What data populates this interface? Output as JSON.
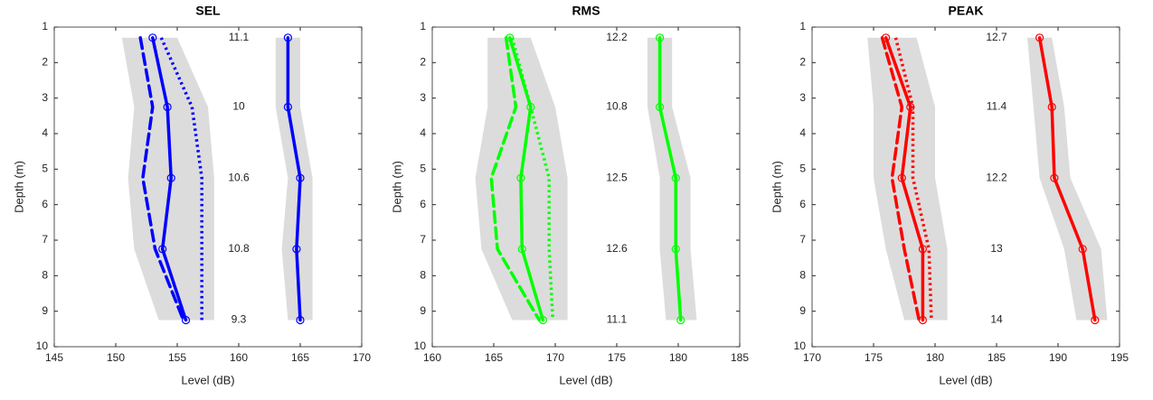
{
  "chart_data": [
    {
      "type": "line",
      "title": "SEL",
      "x_label": "Level (dB)",
      "y_label": "Depth (m)",
      "xlim": [
        145,
        170
      ],
      "xticks": [
        145,
        150,
        155,
        160,
        165,
        170
      ],
      "ylim": [
        1,
        10
      ],
      "yticks": [
        1,
        2,
        3,
        4,
        5,
        6,
        7,
        8,
        9,
        10
      ],
      "y_reversed": true,
      "y": [
        1.3,
        3.25,
        5.25,
        7.25,
        9.25
      ],
      "bands": [
        {
          "color": "#dcdcdc",
          "lower": [
            150.5,
            151.5,
            151,
            151.5,
            153.5
          ],
          "upper": [
            155,
            157.5,
            158,
            158,
            158
          ]
        },
        {
          "color": "#dcdcdc",
          "lower": [
            163,
            163,
            164,
            163.5,
            164
          ],
          "upper": [
            165,
            165,
            166,
            166,
            166
          ]
        }
      ],
      "series": [
        {
          "color": "#0000ff",
          "dash": "solid",
          "markers": true,
          "values": [
            153,
            154.2,
            154.5,
            153.8,
            155.7
          ]
        },
        {
          "color": "#0000ff",
          "dash": "dashed",
          "markers": false,
          "values": [
            152,
            153,
            152.2,
            153.2,
            155.5
          ]
        },
        {
          "color": "#0000ff",
          "dash": "dotted",
          "markers": false,
          "values": [
            153.7,
            156.2,
            157,
            157,
            157
          ]
        },
        {
          "color": "#0000ff",
          "dash": "solid",
          "markers": true,
          "values": [
            164,
            164,
            165,
            164.7,
            165
          ]
        }
      ],
      "annotations": [
        11.1,
        10,
        10.6,
        10.8,
        9.3
      ]
    },
    {
      "type": "line",
      "title": "RMS",
      "x_label": "Level (dB)",
      "y_label": "Depth (m)",
      "xlim": [
        160,
        185
      ],
      "xticks": [
        160,
        165,
        170,
        175,
        180,
        185
      ],
      "ylim": [
        1,
        10
      ],
      "yticks": [
        1,
        2,
        3,
        4,
        5,
        6,
        7,
        8,
        9,
        10
      ],
      "y_reversed": true,
      "y": [
        1.3,
        3.25,
        5.25,
        7.25,
        9.25
      ],
      "bands": [
        {
          "color": "#dcdcdc",
          "lower": [
            164.5,
            164.5,
            163.5,
            164,
            166.5
          ],
          "upper": [
            168,
            170,
            171,
            171,
            171
          ]
        },
        {
          "color": "#dcdcdc",
          "lower": [
            177.5,
            177.5,
            178.5,
            178.5,
            179
          ],
          "upper": [
            179.5,
            179.5,
            181,
            181,
            181.5
          ]
        }
      ],
      "series": [
        {
          "color": "#00ff00",
          "dash": "solid",
          "markers": true,
          "values": [
            166.3,
            168,
            167.2,
            167.3,
            169
          ]
        },
        {
          "color": "#00ff00",
          "dash": "dashed",
          "markers": false,
          "values": [
            166,
            166.8,
            164.8,
            165.3,
            168.7
          ]
        },
        {
          "color": "#00ff00",
          "dash": "dotted",
          "markers": false,
          "values": [
            166.5,
            168,
            169.5,
            169.5,
            169.8
          ]
        },
        {
          "color": "#00ff00",
          "dash": "solid",
          "markers": true,
          "values": [
            178.5,
            178.5,
            179.8,
            179.8,
            180.2
          ]
        }
      ],
      "annotations": [
        12.2,
        10.8,
        12.5,
        12.6,
        11.1
      ]
    },
    {
      "type": "line",
      "title": "PEAK",
      "x_label": "Level (dB)",
      "y_label": "Depth (m)",
      "xlim": [
        170,
        195
      ],
      "xticks": [
        170,
        175,
        180,
        185,
        190,
        195
      ],
      "ylim": [
        1,
        10
      ],
      "yticks": [
        1,
        2,
        3,
        4,
        5,
        6,
        7,
        8,
        9,
        10
      ],
      "y_reversed": true,
      "y": [
        1.3,
        3.25,
        5.25,
        7.25,
        9.25
      ],
      "bands": [
        {
          "color": "#dcdcdc",
          "lower": [
            174.5,
            175,
            175,
            176,
            177.5
          ],
          "upper": [
            178.5,
            180,
            180,
            181,
            181
          ]
        },
        {
          "color": "#dcdcdc",
          "lower": [
            187.5,
            188,
            188.5,
            190.5,
            191.5
          ],
          "upper": [
            189.5,
            190.5,
            191,
            193.5,
            194
          ]
        }
      ],
      "series": [
        {
          "color": "#ff0000",
          "dash": "solid",
          "markers": true,
          "values": [
            176,
            178,
            177.3,
            179,
            179
          ]
        },
        {
          "color": "#ff0000",
          "dash": "dashed",
          "markers": false,
          "values": [
            175.7,
            177.3,
            176.5,
            177.5,
            178.7
          ]
        },
        {
          "color": "#ff0000",
          "dash": "dotted",
          "markers": false,
          "values": [
            176.8,
            178.2,
            178.2,
            179.5,
            179.7
          ]
        },
        {
          "color": "#ff0000",
          "dash": "solid",
          "markers": true,
          "values": [
            188.5,
            189.5,
            189.7,
            192,
            193
          ]
        }
      ],
      "annotations": [
        12.7,
        11.4,
        12.2,
        13,
        14
      ]
    }
  ]
}
